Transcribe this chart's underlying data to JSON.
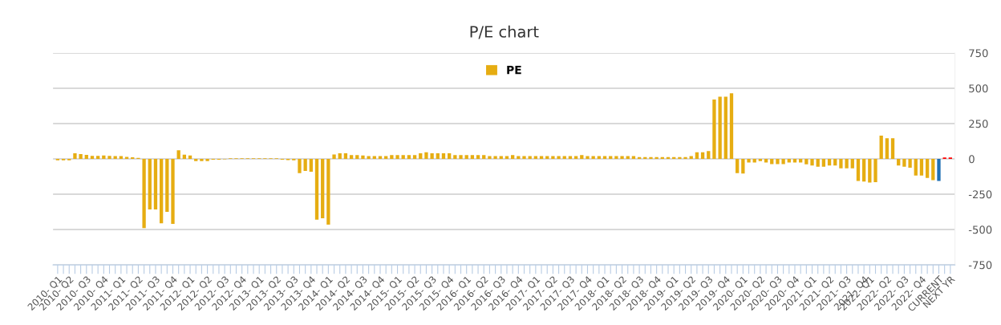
{
  "chart_data": {
    "type": "bar",
    "title": "P/E chart",
    "categories": [
      "2010- Q1",
      null,
      "2010- Q2",
      null,
      null,
      "2010- Q3",
      null,
      null,
      "2010- Q4",
      null,
      null,
      "2011- Q1",
      null,
      null,
      "2011- Q2",
      null,
      null,
      "2011- Q3",
      null,
      null,
      "2011- Q4",
      null,
      null,
      "2012- Q1",
      null,
      null,
      "2012- Q2",
      null,
      null,
      "2012- Q3",
      null,
      null,
      "2012- Q4",
      null,
      null,
      "2013- Q1",
      null,
      null,
      "2013- Q2",
      null,
      null,
      "2013- Q3",
      null,
      null,
      "2013- Q4",
      null,
      null,
      "2014- Q1",
      null,
      null,
      "2014- Q2",
      null,
      null,
      "2014- Q3",
      null,
      null,
      "2014- Q4",
      null,
      null,
      "2015- Q1",
      null,
      null,
      "2015- Q2",
      null,
      null,
      "2015- Q3",
      null,
      null,
      "2015- Q4",
      null,
      null,
      "2016- Q1",
      null,
      null,
      "2016- Q2",
      null,
      null,
      "2016- Q3",
      null,
      null,
      "2016- Q4",
      null,
      null,
      "2017- Q1",
      null,
      null,
      "2017- Q2",
      null,
      null,
      "2017- Q3",
      null,
      null,
      "2017- Q4",
      null,
      null,
      "2018- Q1",
      null,
      null,
      "2018- Q2",
      null,
      null,
      "2018- Q3",
      null,
      null,
      "2018- Q4",
      null,
      null,
      "2019- Q1",
      null,
      null,
      "2019- Q2",
      null,
      null,
      "2019- Q3",
      null,
      null,
      "2019- Q4",
      null,
      null,
      "2020- Q1",
      null,
      null,
      "2020- Q2",
      null,
      null,
      "2020- Q3",
      null,
      null,
      "2020- Q4",
      null,
      null,
      "2021- Q1",
      null,
      null,
      "2021- Q2",
      null,
      null,
      "2021- Q3",
      null,
      null,
      "2021- Q4",
      "2022- Q1",
      null,
      null,
      "2022- Q2",
      null,
      null,
      "2022- Q3",
      null,
      null,
      "2022- Q4",
      null,
      null,
      "CURRENT",
      null,
      "NEXT YR"
    ],
    "series": [
      {
        "name": "PE",
        "color": "#e6ad12",
        "values": [
          -10,
          -10,
          -10,
          40,
          35,
          28,
          22,
          22,
          25,
          22,
          20,
          20,
          15,
          12,
          8,
          -490,
          -358,
          -358,
          -455,
          -375,
          -460,
          62,
          30,
          25,
          -15,
          -15,
          -15,
          -5,
          -5,
          -3,
          4,
          4,
          4,
          4,
          4,
          4,
          4,
          4,
          4,
          -5,
          -8,
          -10,
          -100,
          -85,
          -90,
          -430,
          -420,
          -465,
          32,
          40,
          40,
          27,
          27,
          25,
          20,
          20,
          20,
          20,
          27,
          27,
          27,
          27,
          27,
          40,
          47,
          40,
          40,
          40,
          40,
          27,
          27,
          27,
          27,
          27,
          27,
          20,
          20,
          20,
          20,
          27,
          20,
          20,
          20,
          20,
          20,
          20,
          20,
          20,
          20,
          20,
          20,
          27,
          20,
          20,
          20,
          20,
          20,
          20,
          20,
          20,
          20,
          13,
          13,
          13,
          13,
          13,
          13,
          13,
          13,
          13,
          20,
          47,
          47,
          55,
          420,
          440,
          440,
          464,
          -100,
          -104,
          -25,
          -25,
          -15,
          -25,
          -36,
          -36,
          -36,
          -25,
          -25,
          -25,
          -38,
          -47,
          -55,
          -55,
          -47,
          -47,
          -66,
          -66,
          -66,
          -156,
          -160,
          -167,
          -164,
          165,
          147,
          147,
          -47,
          -55,
          -62,
          -117,
          -117,
          -135,
          -150,
          -156,
          10,
          10
        ],
        "colors": [
          "#e6ad12",
          "#e6ad12",
          "#e6ad12",
          "#e6ad12",
          "#e6ad12",
          "#e6ad12",
          "#e6ad12",
          "#e6ad12",
          "#e6ad12",
          "#e6ad12",
          "#e6ad12",
          "#e6ad12",
          "#e6ad12",
          "#e6ad12",
          "#e6ad12",
          "#e6ad12",
          "#e6ad12",
          "#e6ad12",
          "#e6ad12",
          "#e6ad12",
          "#e6ad12",
          "#e6ad12",
          "#e6ad12",
          "#e6ad12",
          "#e6ad12",
          "#e6ad12",
          "#e6ad12",
          "#e6ad12",
          "#e6ad12",
          "#e6ad12",
          "#e6ad12",
          "#e6ad12",
          "#e6ad12",
          "#e6ad12",
          "#e6ad12",
          "#e6ad12",
          "#e6ad12",
          "#e6ad12",
          "#e6ad12",
          "#e6ad12",
          "#e6ad12",
          "#e6ad12",
          "#e6ad12",
          "#e6ad12",
          "#e6ad12",
          "#e6ad12",
          "#e6ad12",
          "#e6ad12",
          "#e6ad12",
          "#e6ad12",
          "#e6ad12",
          "#e6ad12",
          "#e6ad12",
          "#e6ad12",
          "#e6ad12",
          "#e6ad12",
          "#e6ad12",
          "#e6ad12",
          "#e6ad12",
          "#e6ad12",
          "#e6ad12",
          "#e6ad12",
          "#e6ad12",
          "#e6ad12",
          "#e6ad12",
          "#e6ad12",
          "#e6ad12",
          "#e6ad12",
          "#e6ad12",
          "#e6ad12",
          "#e6ad12",
          "#e6ad12",
          "#e6ad12",
          "#e6ad12",
          "#e6ad12",
          "#e6ad12",
          "#e6ad12",
          "#e6ad12",
          "#e6ad12",
          "#e6ad12",
          "#e6ad12",
          "#e6ad12",
          "#e6ad12",
          "#e6ad12",
          "#e6ad12",
          "#e6ad12",
          "#e6ad12",
          "#e6ad12",
          "#e6ad12",
          "#e6ad12",
          "#e6ad12",
          "#e6ad12",
          "#e6ad12",
          "#e6ad12",
          "#e6ad12",
          "#e6ad12",
          "#e6ad12",
          "#e6ad12",
          "#e6ad12",
          "#e6ad12",
          "#e6ad12",
          "#e6ad12",
          "#e6ad12",
          "#e6ad12",
          "#e6ad12",
          "#e6ad12",
          "#e6ad12",
          "#e6ad12",
          "#e6ad12",
          "#e6ad12",
          "#e6ad12",
          "#e6ad12",
          "#e6ad12",
          "#e6ad12",
          "#e6ad12",
          "#e6ad12",
          "#e6ad12",
          "#e6ad12",
          "#e6ad12",
          "#e6ad12",
          "#e6ad12",
          "#e6ad12",
          "#e6ad12",
          "#e6ad12",
          "#e6ad12",
          "#e6ad12",
          "#e6ad12",
          "#e6ad12",
          "#e6ad12",
          "#e6ad12",
          "#e6ad12",
          "#e6ad12",
          "#e6ad12",
          "#e6ad12",
          "#e6ad12",
          "#e6ad12",
          "#e6ad12",
          "#e6ad12",
          "#e6ad12",
          "#e6ad12",
          "#e6ad12",
          "#e6ad12",
          "#e6ad12",
          "#e6ad12",
          "#e6ad12",
          "#e6ad12",
          "#e6ad12",
          "#e6ad12",
          "#e6ad12",
          "#e6ad12",
          "#e6ad12",
          "#e6ad12",
          "#e6ad12",
          "#1f6fb4",
          "#ff0000",
          "#ff0000"
        ]
      }
    ],
    "ylim": [
      -750,
      750
    ],
    "yticks": [
      -750,
      -500,
      -250,
      0,
      250,
      500,
      750
    ],
    "grid": "y",
    "legend": "top"
  }
}
